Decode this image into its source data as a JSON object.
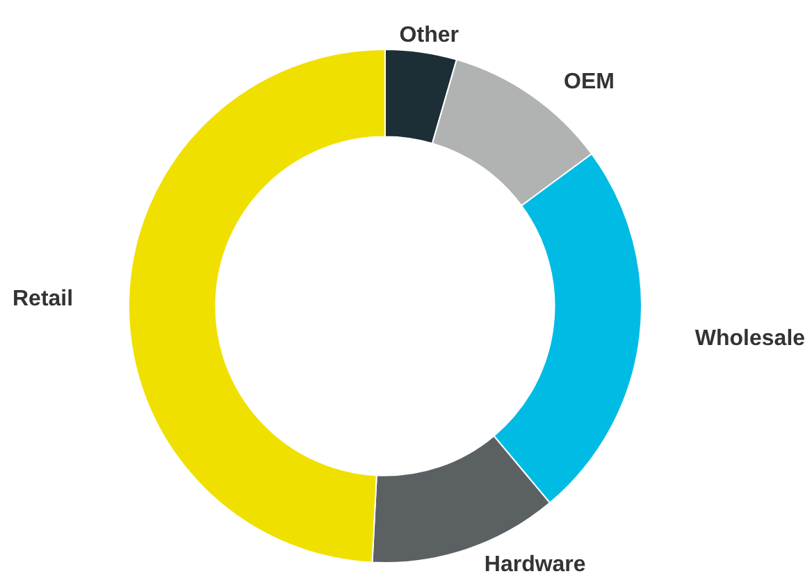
{
  "chart_data": {
    "type": "donut",
    "categories": [
      "Other",
      "OEM",
      "Wholesale",
      "Hardware",
      "Retail"
    ],
    "values": [
      4.5,
      10.4,
      24,
      11.9,
      49.2
    ],
    "colors": [
      "#1c2e36",
      "#b1b3b3",
      "#00bce4",
      "#5b6163",
      "#f0e000"
    ],
    "legend": false
  }
}
